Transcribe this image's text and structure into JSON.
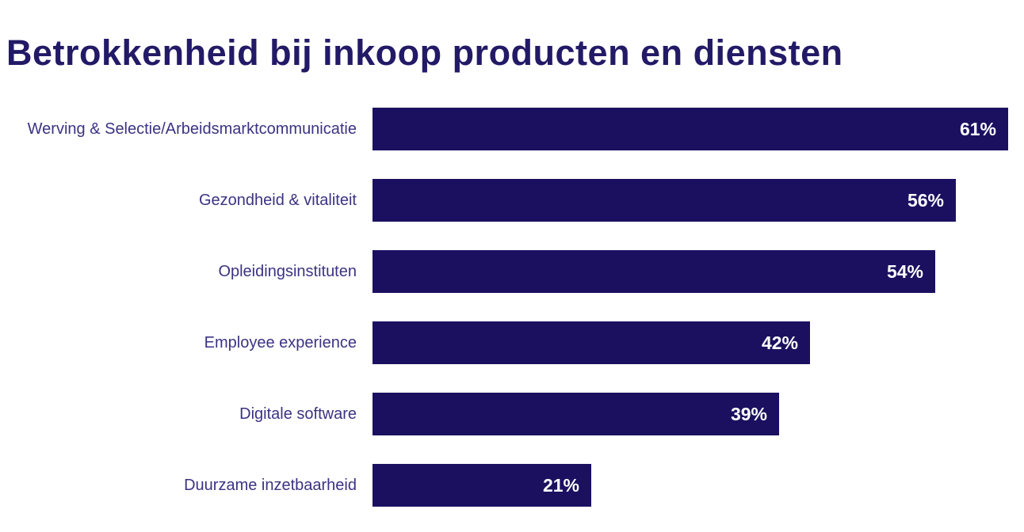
{
  "title": "Betrokkenheid bij inkoop producten en diensten",
  "chart_data": {
    "type": "bar",
    "orientation": "horizontal",
    "title": "Betrokkenheid bij inkoop producten en diensten",
    "categories": [
      "Werving & Selectie/Arbeidsmarktcommunicatie",
      "Gezondheid & vitaliteit",
      "Opleidingsinstituten",
      "Employee experience",
      "Digitale software",
      "Duurzame inzetbaarheid"
    ],
    "values": [
      61,
      56,
      54,
      42,
      39,
      21
    ],
    "value_labels": [
      "61%",
      "56%",
      "54%",
      "42%",
      "39%",
      "21%"
    ],
    "xlabel": "",
    "ylabel": "",
    "xlim": [
      0,
      62.5
    ],
    "grid": false,
    "legend": false,
    "value_labels_position": "inside-end",
    "bar_color": "#1b1060",
    "label_color": "#3b3383",
    "title_color": "#221a66",
    "value_label_color": "#ffffff",
    "background_color": "#ffffff"
  }
}
